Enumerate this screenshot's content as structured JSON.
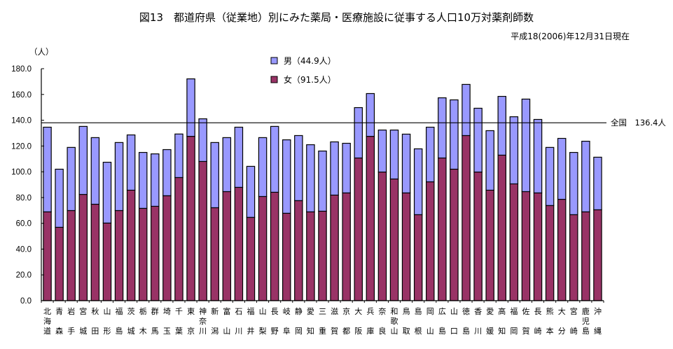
{
  "chart_data": {
    "type": "bar",
    "stacked": true,
    "title": "図13　都道府県（従業地）別にみた薬局・医療施設に従事する人口10万対薬剤師数",
    "subtitle": "平成18(2006)年12月31日現在",
    "ylabel": "（人）",
    "xlabel": "",
    "ylim": [
      0,
      180
    ],
    "yticks": [
      "0.0",
      "20.0",
      "40.0",
      "60.0",
      "80.0",
      "100.0",
      "120.0",
      "140.0",
      "160.0",
      "180.0"
    ],
    "ytick_values": [
      0,
      20,
      40,
      60,
      80,
      100,
      120,
      140,
      160,
      180
    ],
    "grid": false,
    "legend_position": "top-center",
    "legend": [
      {
        "name": "男（44.9人）",
        "color": "#9999ff"
      },
      {
        "name": "女（91.5人）",
        "color": "#993366"
      }
    ],
    "reference_line": {
      "label": "全国　136.4人",
      "value": 136.4
    },
    "categories": [
      "北海道",
      "青森",
      "岩手",
      "宮城",
      "秋田",
      "山形",
      "福島",
      "茨城",
      "栃木",
      "群馬",
      "埼玉",
      "千葉",
      "東京",
      "神奈川",
      "新潟",
      "富山",
      "石川",
      "福井",
      "山梨",
      "長野",
      "岐阜",
      "静岡",
      "愛知",
      "三重",
      "滋賀",
      "京都",
      "大阪",
      "兵庫",
      "奈良",
      "和歌山",
      "鳥取",
      "島根",
      "岡山",
      "広島",
      "山口",
      "徳島",
      "香川",
      "愛媛",
      "高知",
      "福岡",
      "佐賀",
      "長崎",
      "熊本",
      "大分",
      "宮崎",
      "鹿児島",
      "沖縄"
    ],
    "category_lines": [
      [
        "北",
        "海",
        "道"
      ],
      [
        "青",
        "",
        "森"
      ],
      [
        "岩",
        "",
        "手"
      ],
      [
        "宮",
        "",
        "城"
      ],
      [
        "秋",
        "",
        "田"
      ],
      [
        "山",
        "",
        "形"
      ],
      [
        "福",
        "",
        "島"
      ],
      [
        "茨",
        "",
        "城"
      ],
      [
        "栃",
        "",
        "木"
      ],
      [
        "群",
        "",
        "馬"
      ],
      [
        "埼",
        "",
        "玉"
      ],
      [
        "千",
        "",
        "葉"
      ],
      [
        "東",
        "",
        "京"
      ],
      [
        "神",
        "奈",
        "川"
      ],
      [
        "新",
        "",
        "潟"
      ],
      [
        "富",
        "",
        "山"
      ],
      [
        "石",
        "",
        "川"
      ],
      [
        "福",
        "",
        "井"
      ],
      [
        "山",
        "",
        "梨"
      ],
      [
        "長",
        "",
        "野"
      ],
      [
        "岐",
        "",
        "阜"
      ],
      [
        "静",
        "",
        "岡"
      ],
      [
        "愛",
        "",
        "知"
      ],
      [
        "三",
        "",
        "重"
      ],
      [
        "滋",
        "",
        "賀"
      ],
      [
        "京",
        "",
        "都"
      ],
      [
        "大",
        "",
        "阪"
      ],
      [
        "兵",
        "",
        "庫"
      ],
      [
        "奈",
        "",
        "良"
      ],
      [
        "和",
        "歌",
        "山"
      ],
      [
        "鳥",
        "",
        "取"
      ],
      [
        "島",
        "",
        "根"
      ],
      [
        "岡",
        "",
        "山"
      ],
      [
        "広",
        "",
        "島"
      ],
      [
        "山",
        "",
        "口"
      ],
      [
        "徳",
        "",
        "島"
      ],
      [
        "香",
        "",
        "川"
      ],
      [
        "愛",
        "",
        "媛"
      ],
      [
        "高",
        "",
        "知"
      ],
      [
        "福",
        "",
        "岡"
      ],
      [
        "佐",
        "",
        "賀"
      ],
      [
        "長",
        "",
        "崎"
      ],
      [
        "熊",
        "",
        "本"
      ],
      [
        "大",
        "",
        "分"
      ],
      [
        "宮",
        "",
        "崎"
      ],
      [
        "鹿",
        "児",
        "島"
      ],
      [
        "沖",
        "",
        "縄"
      ]
    ],
    "series": [
      {
        "name": "女",
        "color": "#993366",
        "values": [
          68.9,
          56.9,
          69.9,
          82.4,
          74.8,
          60.2,
          69.9,
          85.7,
          71.6,
          73.2,
          81.4,
          95.5,
          127.5,
          108.0,
          72.1,
          84.6,
          87.9,
          64.6,
          80.8,
          84.1,
          67.8,
          77.6,
          68.9,
          69.4,
          81.9,
          83.6,
          110.7,
          127.5,
          99.8,
          94.4,
          83.6,
          66.7,
          92.2,
          110.7,
          102.0,
          128.1,
          99.8,
          85.7,
          112.9,
          90.6,
          84.6,
          83.6,
          73.8,
          78.6,
          66.7,
          68.9,
          70.5
        ]
      },
      {
        "name": "男",
        "color": "#9999ff",
        "values": [
          65.7,
          45.1,
          49.0,
          52.8,
          51.7,
          47.2,
          52.8,
          42.9,
          43.4,
          40.7,
          35.8,
          33.8,
          44.6,
          33.1,
          50.6,
          41.9,
          46.7,
          39.6,
          45.7,
          51.1,
          57.0,
          50.5,
          52.1,
          46.7,
          41.3,
          38.5,
          39.1,
          33.2,
          32.6,
          38.0,
          45.6,
          51.1,
          42.4,
          46.7,
          53.8,
          39.7,
          49.5,
          46.2,
          45.6,
          52.1,
          71.8,
          57.0,
          45.1,
          47.3,
          48.3,
          54.8,
          40.8
        ]
      }
    ],
    "totals": [
      134.6,
      102.0,
      118.9,
      135.2,
      126.5,
      107.4,
      122.7,
      128.6,
      115.0,
      113.9,
      117.2,
      129.3,
      172.1,
      141.1,
      122.7,
      126.5,
      134.6,
      104.2,
      126.5,
      135.2,
      124.8,
      128.1,
      121.0,
      116.1,
      123.2,
      122.1,
      149.8,
      160.7,
      132.4,
      132.4,
      129.2,
      117.8,
      134.6,
      157.4,
      155.8,
      167.8,
      149.3,
      131.9,
      158.5,
      142.7,
      156.4,
      140.6,
      118.9,
      125.9,
      115.0,
      123.7,
      111.3
    ]
  }
}
